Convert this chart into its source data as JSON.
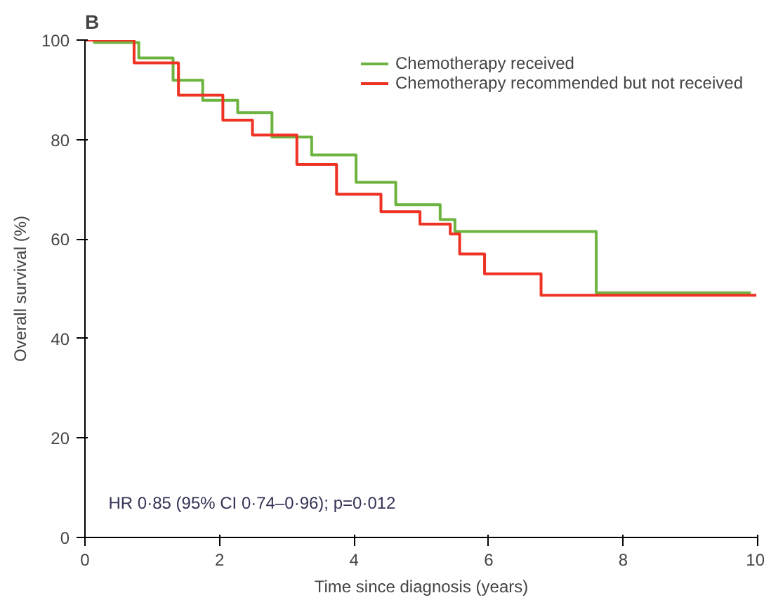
{
  "chart_data": {
    "type": "step",
    "title": "B",
    "xlabel": "Time since diagnosis (years)",
    "ylabel": "Overall survival (%)",
    "xlim": [
      0,
      10
    ],
    "xticks": [
      0,
      2,
      4,
      6,
      8,
      10
    ],
    "ylim": [
      0,
      100
    ],
    "yticks": [
      0,
      20,
      40,
      60,
      80,
      100
    ],
    "grid": false,
    "legend": "top right",
    "annotations": [
      "HR 0·85 (95% CI 0·74–0·96); p=0·012"
    ],
    "series": [
      {
        "name": "Chemotherapy received",
        "color": "#6db33f",
        "x": [
          0,
          0.14,
          0.8,
          1.31,
          1.75,
          2.27,
          2.78,
          3.37,
          4.03,
          4.62,
          5.28,
          5.5,
          7.6,
          7.6,
          9.9
        ],
        "values": [
          100,
          99.5,
          96.4,
          91.9,
          87.9,
          85.4,
          80.5,
          76.9,
          71.4,
          66.9,
          63.9,
          61.5,
          61.5,
          49.2,
          49.2
        ]
      },
      {
        "name": "Chemotherapy recommended but not received",
        "color": "#ee3224",
        "x": [
          0,
          0.73,
          1.39,
          2.05,
          2.49,
          3.15,
          3.74,
          4.4,
          4.98,
          5.43,
          5.57,
          5.94,
          6.78,
          6.78,
          9.98
        ],
        "values": [
          100,
          95.4,
          88.9,
          83.9,
          80.9,
          75,
          69,
          65.5,
          63,
          61,
          57,
          53,
          53,
          48.7,
          48.7
        ]
      }
    ]
  }
}
